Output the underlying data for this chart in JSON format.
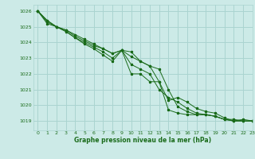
{
  "background_color": "#cceae7",
  "grid_color": "#aad4d0",
  "line_color": "#1a6b1a",
  "title": "Graphe pression niveau de la mer (hPa)",
  "xlim": [
    -0.5,
    23
  ],
  "ylim": [
    1018.4,
    1026.4
  ],
  "yticks": [
    1019,
    1020,
    1021,
    1022,
    1023,
    1024,
    1025,
    1026
  ],
  "xticks": [
    0,
    1,
    2,
    3,
    4,
    5,
    6,
    7,
    8,
    9,
    10,
    11,
    12,
    13,
    14,
    15,
    16,
    17,
    18,
    19,
    20,
    21,
    22,
    23
  ],
  "series1": [
    1026.0,
    1025.4,
    1025.0,
    1024.8,
    1024.4,
    1024.1,
    1023.8,
    1023.6,
    1023.3,
    1023.5,
    1023.4,
    1022.8,
    1022.5,
    1021.5,
    1019.7,
    1019.5,
    1019.4,
    1019.4,
    1019.4,
    1019.3,
    1019.1,
    1019.1,
    1019.0,
    1019.0
  ],
  "series2": [
    1026.0,
    1025.4,
    1025.0,
    1024.8,
    1024.5,
    1024.2,
    1023.9,
    1023.6,
    1023.3,
    1023.5,
    1023.1,
    1022.8,
    1022.5,
    1022.3,
    1021.0,
    1019.9,
    1019.6,
    1019.4,
    1019.4,
    1019.3,
    1019.1,
    1019.0,
    1019.0,
    1019.0
  ],
  "series3": [
    1026.0,
    1025.3,
    1025.0,
    1024.7,
    1024.3,
    1024.0,
    1023.7,
    1023.4,
    1023.0,
    1023.5,
    1022.6,
    1022.3,
    1022.0,
    1021.0,
    1020.5,
    1020.2,
    1019.8,
    1019.5,
    1019.4,
    1019.3,
    1019.1,
    1019.0,
    1019.0,
    1019.0
  ],
  "series4": [
    1026.0,
    1025.2,
    1025.0,
    1024.7,
    1024.3,
    1023.9,
    1023.6,
    1023.2,
    1022.8,
    1023.5,
    1022.0,
    1022.0,
    1021.5,
    1021.5,
    1020.3,
    1020.5,
    1020.2,
    1019.8,
    1019.6,
    1019.5,
    1019.2,
    1019.0,
    1019.1,
    1019.0
  ]
}
